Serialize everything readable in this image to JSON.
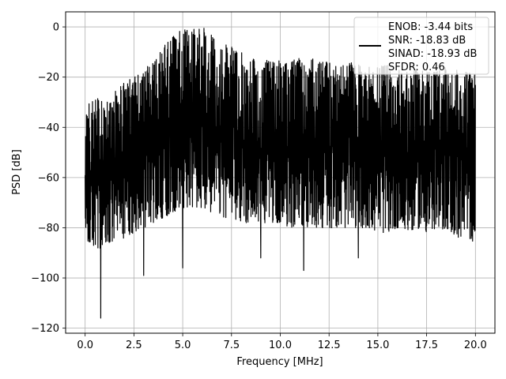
{
  "chart_data": {
    "type": "line",
    "title": "",
    "xlabel": "Frequency [MHz]",
    "ylabel": "PSD [dB]",
    "xlim": [
      -1.0,
      21.0
    ],
    "ylim": [
      -122,
      6
    ],
    "xticks": [
      0.0,
      2.5,
      5.0,
      7.5,
      10.0,
      12.5,
      15.0,
      17.5,
      20.0
    ],
    "xtick_labels": [
      "0.0",
      "2.5",
      "5.0",
      "7.5",
      "10.0",
      "12.5",
      "15.0",
      "17.5",
      "20.0"
    ],
    "yticks": [
      0,
      -20,
      -40,
      -60,
      -80,
      -100,
      -120
    ],
    "ytick_labels": [
      "0",
      "−20",
      "−40",
      "−60",
      "−80",
      "−100",
      "−120"
    ],
    "grid": true,
    "legend_position": "top-right",
    "legend_lines": [
      "ENOB: -3.44 bits",
      "SNR: -18.83 dB",
      "SINAD: -18.93 dB",
      "SFDR: 0.46"
    ],
    "series_color": "#000000",
    "series": [
      {
        "name": "",
        "envelope": {
          "x": [
            0.0,
            0.5,
            1.0,
            1.5,
            2.0,
            2.5,
            3.0,
            3.5,
            4.0,
            4.5,
            5.0,
            5.5,
            6.0,
            6.5,
            7.0,
            7.5,
            8.0,
            8.5,
            9.0,
            9.5,
            10.0,
            10.5,
            11.0,
            11.5,
            12.0,
            12.5,
            13.0,
            13.5,
            14.0,
            14.5,
            15.0,
            15.5,
            16.0,
            16.5,
            17.0,
            17.5,
            18.0,
            18.5,
            19.0,
            19.5,
            20.0
          ],
          "upper": [
            -32,
            -28,
            -30,
            -26,
            -22,
            -20,
            -18,
            -12,
            -8,
            -4,
            0,
            0,
            0,
            -3,
            -6,
            -8,
            -10,
            -12,
            -12,
            -14,
            -13,
            -14,
            -12,
            -12,
            -14,
            -14,
            -16,
            -14,
            -15,
            -16,
            -16,
            -15,
            -17,
            -18,
            -17,
            -18,
            -18,
            -16,
            -17,
            -18,
            -19
          ],
          "lower": [
            -86,
            -88,
            -90,
            -86,
            -84,
            -82,
            -80,
            -78,
            -76,
            -74,
            -72,
            -72,
            -73,
            -74,
            -76,
            -76,
            -78,
            -78,
            -78,
            -78,
            -78,
            -80,
            -79,
            -80,
            -80,
            -80,
            -80,
            -80,
            -80,
            -80,
            -82,
            -82,
            -80,
            -82,
            -80,
            -82,
            -82,
            -80,
            -84,
            -84,
            -86
          ],
          "deep_notches": [
            [
              0.8,
              -116
            ],
            [
              3.0,
              -99
            ],
            [
              5.0,
              -96
            ],
            [
              9.0,
              -92
            ],
            [
              11.2,
              -97
            ],
            [
              14.0,
              -92
            ]
          ]
        }
      }
    ]
  }
}
